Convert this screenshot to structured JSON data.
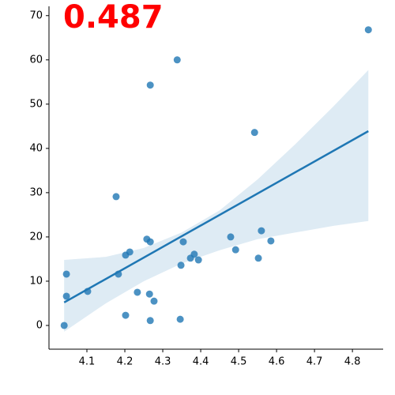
{
  "chart_data": {
    "type": "regplot",
    "annotation": "0.487",
    "annotation_color": "#ff0000",
    "color": "#1f77b4",
    "x": [
      4.04,
      4.046,
      4.046,
      4.102,
      4.177,
      4.183,
      4.202,
      4.213,
      4.202,
      4.233,
      4.258,
      4.267,
      4.267,
      4.265,
      4.277,
      4.267,
      4.338,
      4.346,
      4.348,
      4.354,
      4.373,
      4.383,
      4.394,
      4.479,
      4.492,
      4.542,
      4.552,
      4.56,
      4.585,
      4.842
    ],
    "values": [
      0,
      6.6,
      11.6,
      7.7,
      29.1,
      11.6,
      15.9,
      16.6,
      2.3,
      7.5,
      19.5,
      18.9,
      54.3,
      7.1,
      5.5,
      1.1,
      60.0,
      1.4,
      13.6,
      18.9,
      15.2,
      16.1,
      14.8,
      20.0,
      17.1,
      43.6,
      15.2,
      21.4,
      19.1,
      66.8
    ],
    "fit": {
      "x": [
        4.04,
        4.842
      ],
      "y": [
        5.2,
        43.9
      ]
    },
    "band": {
      "x": [
        4.04,
        4.15,
        4.25,
        4.35,
        4.45,
        4.55,
        4.65,
        4.75,
        4.842
      ],
      "lower": [
        -1.4,
        5,
        10,
        14,
        17,
        19.5,
        21,
        22.5,
        23.6
      ],
      "upper": [
        14.8,
        15.5,
        17.5,
        21,
        26,
        33,
        41,
        49.5,
        57.7
      ]
    },
    "xlim": [
      4.0,
      4.881
    ],
    "ylim": [
      -5.36,
      72.1
    ],
    "xticks": [
      4.1,
      4.2,
      4.3,
      4.4,
      4.5,
      4.6,
      4.7,
      4.8
    ],
    "yticks": [
      0,
      10,
      20,
      30,
      40,
      50,
      60,
      70
    ]
  }
}
